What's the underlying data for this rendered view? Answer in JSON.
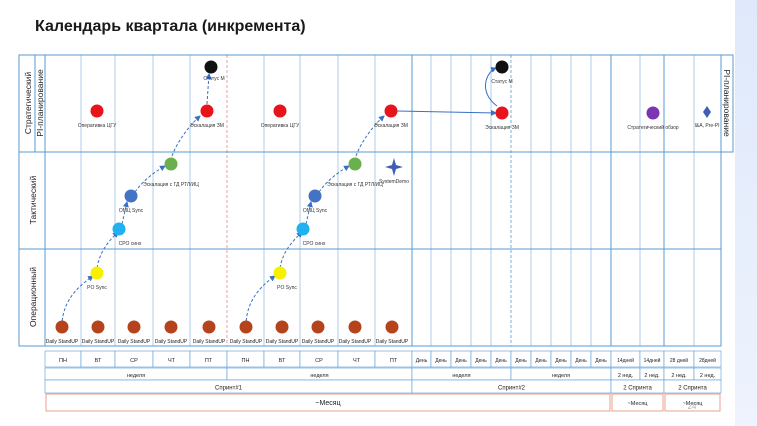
{
  "title": "Календарь квартала (инкремента)",
  "page_number": "24",
  "colors": {
    "grid": "#5a9bd5",
    "red": "#e8141b",
    "black": "#111111",
    "green": "#6ab04c",
    "blue": "#4472c4",
    "cyan": "#20b2f0",
    "yellow": "#f7f000",
    "brown": "#b5441c",
    "purple": "#7a35b5",
    "demo": "#3f5fb7",
    "month_border": "#e8a08e"
  },
  "rows": {
    "strategic": "Стратегический",
    "tactical": "Тактический",
    "operational": "Операционный",
    "pi_left": "PI-планирование",
    "pi_right": "PI-планирование"
  },
  "days": [
    "ПН",
    "ВТ",
    "СР",
    "ЧТ",
    "ПТ",
    "ПН",
    "ВТ",
    "СР",
    "ЧТ",
    "ПТ",
    "День",
    "День",
    "День",
    "День",
    "День",
    "День",
    "День",
    "День",
    "День",
    "День",
    "14дней",
    "14дней",
    "28 дней",
    "28дней"
  ],
  "weeks": [
    "неделя",
    "неделя",
    "неделя",
    "неделя",
    "2 нед.",
    "2 нед.",
    "2 нед.",
    "2 нед."
  ],
  "sprints": [
    "Спринт#1",
    "Спринт#2",
    "2 Спринта",
    "2 Спринта"
  ],
  "months": [
    "~Месяц",
    "~Месяц",
    "~Месяц"
  ],
  "events": {
    "status1": "Статус М",
    "status2": "Статус М",
    "oper1": "Оперативка ЦГУ",
    "escal_zm1": "Эскалация ЗМ",
    "oper2": "Оперативка ЦГУ",
    "escal_zm2": "Эскалация ЗМ",
    "escal_zm3": "Эскалация ЗМ",
    "strategic_review": "Стратегический обзор",
    "ia_prepi": "I&A, Pre-PI",
    "escal_gd1": "Эскалация с ГД РТЛ/ИЦ",
    "escal_gd2": "Эскалация с ГД РТЛ/ИЦ",
    "omc1": "ОМЦ Sync",
    "omc2": "ОМЦ Sync",
    "cpo1": "СРО синх",
    "cpo2": "СРО синх",
    "system_demo": "SystemDemo",
    "po1": "PO Sync",
    "po2": "PO Sync",
    "standup": "Daily StandUP"
  }
}
